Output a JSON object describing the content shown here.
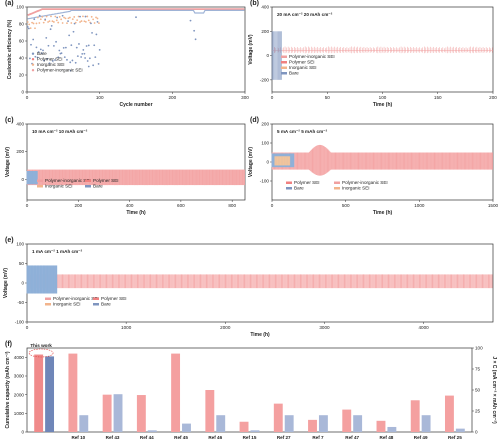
{
  "colors": {
    "bare": "#7f95bf",
    "polymer": "#f08080",
    "inorganic": "#f2b48c",
    "polyinorg": "#f0a0a0"
  },
  "chart_data": [
    {
      "type": "scatter",
      "panel": "(a)",
      "xlabel": "Cycle number",
      "ylabel": "Coulombic efficiency (%)",
      "xlim": [
        0,
        300
      ],
      "ylim": [
        0,
        100
      ],
      "xticks": [
        "0",
        "100",
        "200",
        "300"
      ],
      "yticks": [
        "0",
        "20",
        "40",
        "60",
        "80",
        "100"
      ],
      "legend": [
        "Bare",
        "Polymer SEI",
        "Inorganic SEI",
        "Polymer-inorganic SEI"
      ],
      "series": [
        {
          "name": "Bare",
          "x": [
            5,
            10,
            15,
            20,
            25,
            30,
            35,
            40,
            45,
            50,
            55,
            60,
            70,
            80,
            90,
            100,
            150,
            200,
            230,
            235
          ],
          "values": [
            65,
            48,
            88,
            38,
            81,
            72,
            22,
            85,
            62,
            92,
            47,
            28,
            33,
            13,
            58,
            37,
            53,
            60,
            84,
            82
          ]
        },
        {
          "name": "Polymer SEI",
          "x": [
            1,
            50,
            100,
            150,
            200,
            250,
            300
          ],
          "values": [
            86,
            93,
            96,
            97,
            97,
            96,
            96
          ]
        },
        {
          "name": "Inorganic SEI",
          "x": [
            1,
            30,
            60,
            90,
            100
          ],
          "values": [
            80,
            92,
            91,
            90,
            89
          ]
        },
        {
          "name": "Polymer-inorganic SEI",
          "x": [
            1,
            50,
            100,
            200,
            300
          ],
          "values": [
            90,
            97,
            98,
            98,
            98
          ]
        }
      ]
    },
    {
      "type": "line",
      "panel": "(b)",
      "annotation": "20 mA cm⁻²   20 mAh cm⁻²",
      "xlabel": "Time (h)",
      "ylabel": "Voltage (mV)",
      "xlim": [
        0,
        200
      ],
      "ylim": [
        -300,
        400
      ],
      "xticks": [
        "0",
        "50",
        "100",
        "150",
        "200"
      ],
      "yticks": [
        "-200",
        "0",
        "200",
        "400"
      ],
      "legend": [
        "Polymer-inorganic SEI",
        "Polymer SEI",
        "Inorganic SEI",
        "Bare"
      ],
      "series": [
        {
          "name": "Polymer-inorganic SEI",
          "x": [
            0,
            200
          ],
          "values": [
            40,
            40
          ]
        },
        {
          "name": "Bare",
          "x": [
            0,
            8
          ],
          "values": [
            120,
            120
          ]
        }
      ]
    },
    {
      "type": "area",
      "panel": "(c)",
      "annotation": "10 mA cm⁻²   10 mAh cm⁻²",
      "xlabel": "Time (h)",
      "ylabel": "Voltage (mV)",
      "xlim": [
        0,
        850
      ],
      "ylim": [
        -150,
        400
      ],
      "xticks": [
        "0",
        "200",
        "400",
        "600",
        "800"
      ],
      "yticks": [
        "0",
        "200",
        "400"
      ],
      "legend": [
        "Polymer-inorganic SEI",
        "Polymer SEI",
        "Inorganic SEI",
        "Bare"
      ],
      "series": [
        {
          "name": "Polymer-inorganic SEI",
          "x": [
            0,
            850
          ],
          "values": [
            70,
            70
          ]
        },
        {
          "name": "Bare",
          "x": [
            0,
            40
          ],
          "values": [
            60,
            60
          ]
        }
      ]
    },
    {
      "type": "area",
      "panel": "(d)",
      "annotation": "5 mA cm⁻²   5 mAh cm⁻²",
      "xlabel": "Time (h)",
      "ylabel": "Voltage (mV)",
      "xlim": [
        0,
        1500
      ],
      "ylim": [
        -200,
        200
      ],
      "xticks": [
        "0",
        "500",
        "1000",
        "1500"
      ],
      "yticks": [
        "-100",
        "0",
        "100",
        "200"
      ],
      "legend": [
        "Polymer SEI",
        "Polymer-inorganic SEI",
        "Bare",
        "Inorganic SEI"
      ],
      "series": [
        {
          "name": "Polymer-inorganic SEI",
          "x": [
            0,
            1500
          ],
          "values": [
            50,
            50
          ]
        },
        {
          "name": "Bare",
          "x": [
            0,
            150
          ],
          "values": [
            40,
            40
          ]
        }
      ]
    },
    {
      "type": "area",
      "panel": "(e)",
      "annotation": "1 mA cm⁻²   1 mAh cm⁻²",
      "xlabel": "Time (h)",
      "ylabel": "Voltage (mV)",
      "xlim": [
        0,
        4700
      ],
      "ylim": [
        -100,
        100
      ],
      "xticks": [
        "0",
        "1000",
        "2000",
        "3000",
        "4000"
      ],
      "yticks": [
        "-100",
        "-50",
        "0",
        "50",
        "100"
      ],
      "legend": [
        "Polymer-inorganic SEI",
        "Polymer SEI",
        "Inorganic SEI",
        "Bare"
      ],
      "series": [
        {
          "name": "Polymer-inorganic SEI",
          "x": [
            0,
            4700
          ],
          "values": [
            25,
            25
          ]
        },
        {
          "name": "Bare",
          "x": [
            0,
            300
          ],
          "values": [
            40,
            40
          ]
        }
      ]
    },
    {
      "type": "bar",
      "panel": "(f)",
      "annotation": "This work",
      "ylabel": "Cumulative capacity (mAh cm⁻²)",
      "y2label": "J × C (mA cm⁻² × mAh cm⁻²)",
      "ylim": [
        0,
        4500
      ],
      "y2lim": [
        0,
        100
      ],
      "yticks": [
        "0",
        "1000",
        "2000",
        "3000",
        "4000"
      ],
      "y2ticks": [
        "0",
        "25",
        "50",
        "75",
        "100"
      ],
      "categories": [
        "This work",
        "Ref 10",
        "Ref 43",
        "Ref 44",
        "Ref 45",
        "Ref 46",
        "Ref 15",
        "Ref 27",
        "Ref 7",
        "Ref 47",
        "Ref 48",
        "Ref 49",
        "Ref 25"
      ],
      "xticklabels": [
        "",
        "Ref 10",
        "Ref 43",
        "Ref 44",
        "Ref 45",
        "Ref 46",
        "Ref 15",
        "Ref 27",
        "Ref 7",
        "Ref 47",
        "Ref 48",
        "Ref 49",
        "Ref 25"
      ],
      "series": [
        {
          "name": "Cumulative capacity",
          "values": [
            4150,
            4200,
            2000,
            1980,
            4200,
            2250,
            550,
            1520,
            650,
            1200,
            600,
            1700,
            1950
          ]
        },
        {
          "name": "J × C",
          "values": [
            90,
            20,
            45,
            2,
            10,
            20,
            2,
            20,
            20,
            20,
            6,
            20,
            4
          ]
        }
      ]
    }
  ]
}
